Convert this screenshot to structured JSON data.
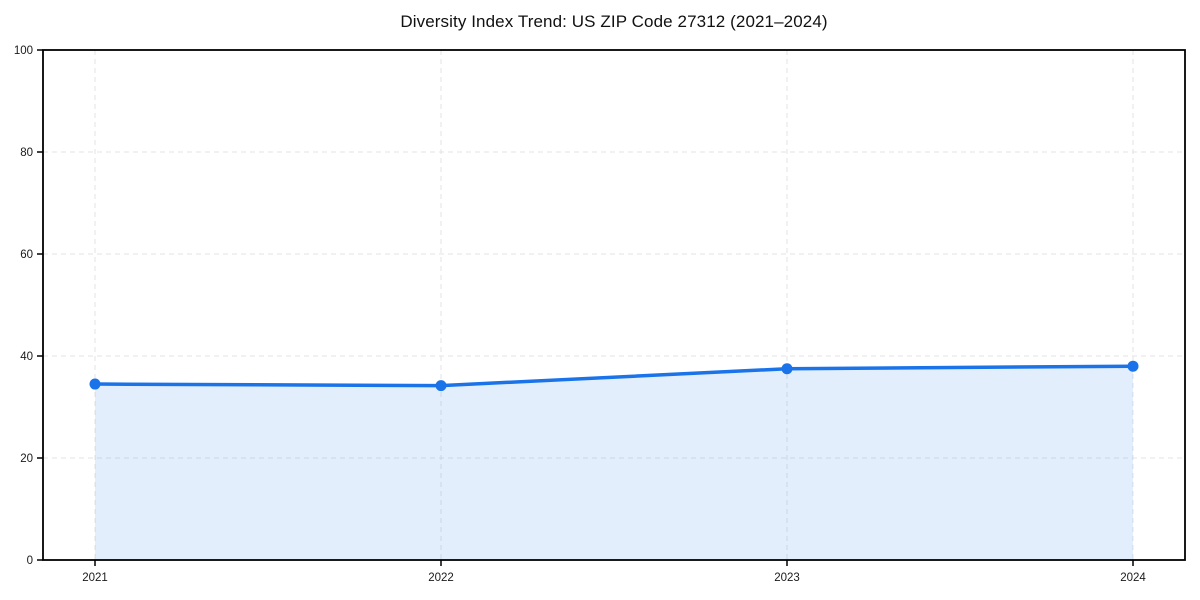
{
  "chart_data": {
    "type": "line",
    "title": "Diversity Index Trend: US ZIP Code 27312 (2021–2024)",
    "x": [
      "2021",
      "2022",
      "2023",
      "2024"
    ],
    "series": [
      {
        "name": "Diversity Index",
        "values": [
          34.5,
          34.2,
          37.5,
          38.0
        ]
      }
    ],
    "xlabel": "",
    "ylabel": "",
    "ylim": [
      0,
      100
    ],
    "yticks": [
      0,
      20,
      40,
      60,
      80,
      100
    ],
    "grid": "dashed",
    "legend": "none",
    "style": {
      "line_color": "#1a73e8",
      "marker_color": "#1a73e8",
      "area_fill_color": "rgba(26,115,232,0.12)",
      "grid_color": "#e3e3e3",
      "axis_color": "#000000",
      "tick_label_color": "#1a1a1a",
      "background_color": "#ffffff"
    }
  }
}
